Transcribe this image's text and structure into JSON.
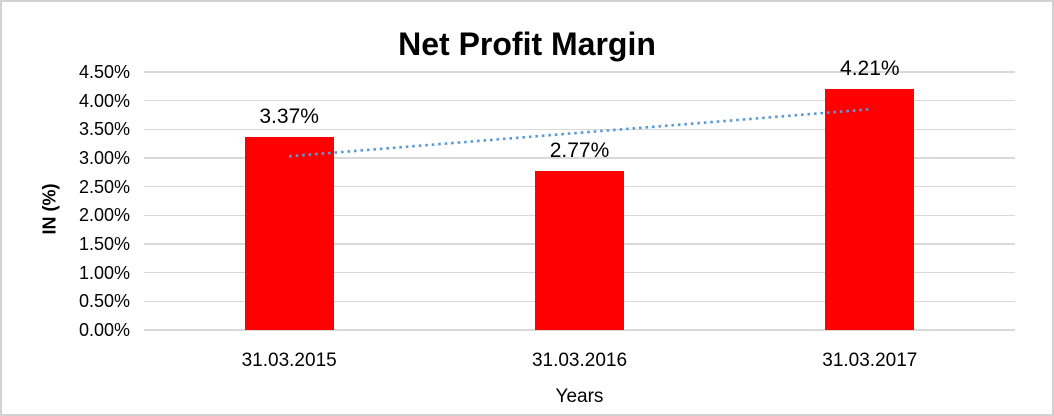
{
  "frame": {
    "border_color": "#d2d2d2",
    "background_color": "#ffffff"
  },
  "chart_data": {
    "type": "bar",
    "title": "Net Profit Margin",
    "xlabel": "Years",
    "ylabel": "IN (%)",
    "categories": [
      "31.03.2015",
      "31.03.2016",
      "31.03.2017"
    ],
    "values": [
      3.37,
      2.77,
      4.21
    ],
    "data_labels": [
      "3.37%",
      "2.77%",
      "4.21%"
    ],
    "ylim": [
      0,
      4.5
    ],
    "ytick_step": 0.5,
    "ytick_labels": [
      "0.00%",
      "0.50%",
      "1.00%",
      "1.50%",
      "2.00%",
      "2.50%",
      "3.00%",
      "3.50%",
      "4.00%",
      "4.50%"
    ],
    "grid": true,
    "legend": "none",
    "bar_color": "#ff0000",
    "gridline_color": "#d9d9d9",
    "text_color": "#000000",
    "trendline": {
      "type": "linear",
      "style": "dotted",
      "color": "#5b9bd5",
      "start_value_pct": 3.03,
      "end_value_pct": 3.85
    }
  }
}
